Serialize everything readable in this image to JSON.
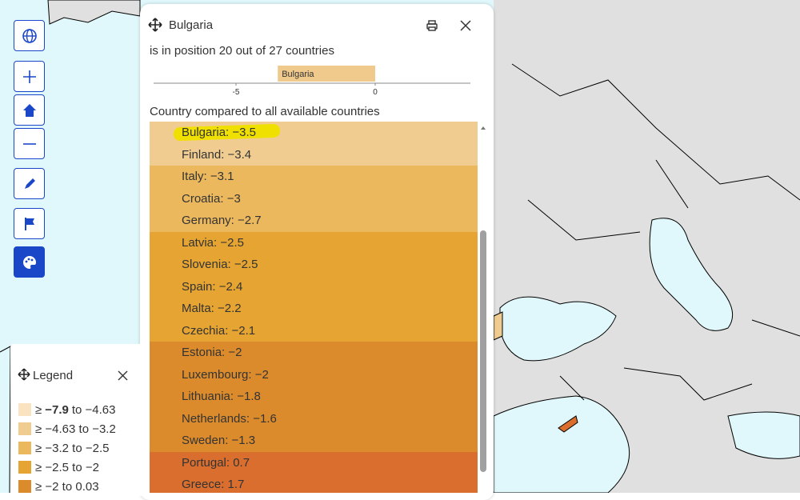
{
  "popup": {
    "title": "Bulgaria",
    "subtitle": "is in position 20 out of 27 countries",
    "chart": {
      "label": "Bulgaria",
      "value": -3.5,
      "color": "#f0c98d",
      "xlim": [
        -7.96,
        3.42
      ],
      "xticks": [
        -5,
        0
      ]
    },
    "list_heading": "Country compared to all available countries",
    "rows": [
      {
        "text": "Bulgaria: −3.5",
        "color": "#f0cc90",
        "highlight": true
      },
      {
        "text": "Finland: −3.4",
        "color": "#f0cc90"
      },
      {
        "text": "Italy: −3.1",
        "color": "#ecb85e"
      },
      {
        "text": "Croatia: −3",
        "color": "#ecb85e"
      },
      {
        "text": "Germany: −2.7",
        "color": "#ecb85e"
      },
      {
        "text": "Latvia: −2.5",
        "color": "#e6a432"
      },
      {
        "text": "Slovenia: −2.5",
        "color": "#e6a432"
      },
      {
        "text": "Spain: −2.4",
        "color": "#e6a432"
      },
      {
        "text": "Malta: −2.2",
        "color": "#e6a432"
      },
      {
        "text": "Czechia: −2.1",
        "color": "#e6a432"
      },
      {
        "text": "Estonia: −2",
        "color": "#dc8b2c"
      },
      {
        "text": "Luxembourg: −2",
        "color": "#dc8b2c"
      },
      {
        "text": "Lithuania: −1.8",
        "color": "#dc8b2c"
      },
      {
        "text": "Netherlands: −1.6",
        "color": "#dc8b2c"
      },
      {
        "text": "Sweden: −1.3",
        "color": "#dc8b2c"
      },
      {
        "text": "Portugal: 0.7",
        "color": "#d96e2e"
      },
      {
        "text": "Greece: 1.7",
        "color": "#d96e2e"
      }
    ]
  },
  "legend": {
    "title": "Legend",
    "items": [
      {
        "start": "≥",
        "bold": "−7.9",
        "end": "to −4.63",
        "color": "#fae3c1"
      },
      {
        "label": "≥ −4.63 to −3.2",
        "color": "#f0cc90"
      },
      {
        "label": "≥ −3.2 to −2.5",
        "color": "#ecb85e"
      },
      {
        "label": "≥ −2.5 to −2",
        "color": "#e6a432"
      },
      {
        "label": "≥ −2 to 0.03",
        "color": "#dc8b2c"
      }
    ]
  }
}
